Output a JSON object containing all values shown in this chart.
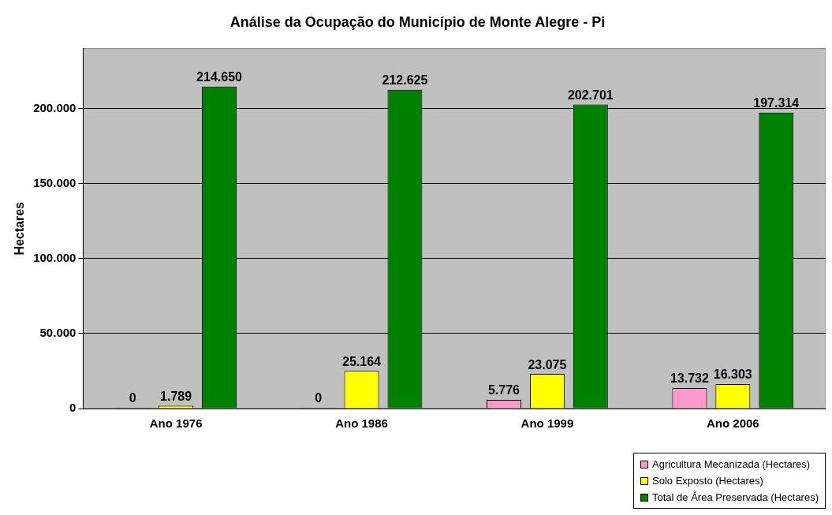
{
  "chart_data": {
    "type": "bar",
    "title": "Análise da Ocupação do Município de Monte Alegre - Pi",
    "ylabel": "Hectares",
    "categories": [
      "Ano 1976",
      "Ano 1986",
      "Ano 1999",
      "Ano 2006"
    ],
    "series": [
      {
        "name": "Agricultura Mecanizada (Hectares)",
        "color": "#ff99cc",
        "values": [
          0,
          0,
          5776,
          13732
        ],
        "value_labels": [
          "0",
          "0",
          "5.776",
          "13.732"
        ]
      },
      {
        "name": "Solo Exposto (Hectares)",
        "color": "#ffff00",
        "values": [
          1789,
          25164,
          23075,
          16303
        ],
        "value_labels": [
          "1.789",
          "25.164",
          "23.075",
          "16.303"
        ]
      },
      {
        "name": "Total de Área Preservada (Hectares)",
        "color": "#008000",
        "values": [
          214650,
          212625,
          202701,
          197314
        ],
        "value_labels": [
          "214.650",
          "212.625",
          "202.701",
          "197.314"
        ]
      }
    ],
    "ylim": [
      0,
      240000
    ],
    "yticks": [
      0,
      {
        "value": 50000,
        "label": "50.000"
      },
      {
        "value": 100000,
        "label": "100.000"
      },
      {
        "value": 150000,
        "label": "150.000"
      },
      {
        "value": 200000,
        "label": "200.000"
      }
    ],
    "grid": "y",
    "legend": "bottom right"
  }
}
